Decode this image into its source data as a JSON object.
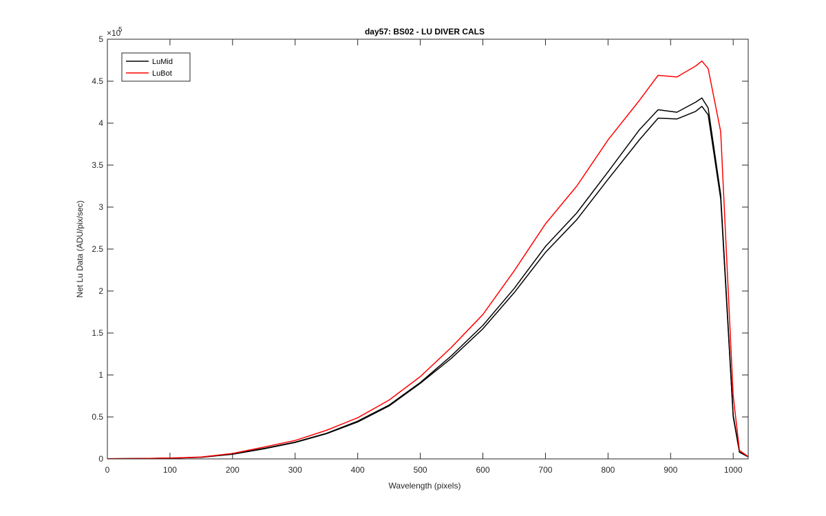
{
  "chart_data": {
    "type": "line",
    "title": "day57: BS02 - LU DIVER CALS",
    "xlabel": "Wavelength (pixels)",
    "ylabel": "Net Lu Data (ADU/pix/sec)",
    "y_exponent_label": "×10",
    "y_exponent": "5",
    "xlim": [
      0,
      1024
    ],
    "ylim": [
      0,
      500000
    ],
    "x_ticks": [
      0,
      100,
      200,
      300,
      400,
      500,
      600,
      700,
      800,
      900,
      1000
    ],
    "y_ticks": [
      0,
      50000,
      100000,
      150000,
      200000,
      250000,
      300000,
      350000,
      400000,
      450000,
      500000
    ],
    "x_tick_labels": [
      "0",
      "100",
      "200",
      "300",
      "400",
      "500",
      "600",
      "700",
      "800",
      "900",
      "1000"
    ],
    "y_tick_labels": [
      "0",
      "0.5",
      "1",
      "1.5",
      "2",
      "2.5",
      "3",
      "3.5",
      "4",
      "4.5",
      "5"
    ],
    "grid": false,
    "legend_position": "top-left",
    "colors": {
      "LuMid": "#000000",
      "LuBot": "#ff0000"
    },
    "x": [
      0,
      50,
      100,
      150,
      200,
      250,
      300,
      350,
      400,
      450,
      500,
      550,
      600,
      650,
      700,
      750,
      800,
      850,
      880,
      910,
      940,
      950,
      960,
      980,
      1000,
      1010,
      1024
    ],
    "series": [
      {
        "name": "LuMid",
        "color": "#000000",
        "values": [
          200,
          400,
          900,
          2000,
          5500,
          12000,
          19500,
          30000,
          44000,
          63000,
          90000,
          120000,
          155000,
          198000,
          246000,
          285000,
          333000,
          380000,
          406000,
          405000,
          414000,
          420000,
          410000,
          310000,
          50000,
          8000,
          2500
        ]
      },
      {
        "name": "LuMid",
        "color": "#000000",
        "values": [
          200,
          400,
          900,
          2000,
          5800,
          12500,
          20000,
          30500,
          45000,
          64000,
          91000,
          123000,
          159000,
          203000,
          253000,
          293000,
          342000,
          392000,
          416000,
          413000,
          425000,
          430000,
          418000,
          315000,
          52000,
          8000,
          2500
        ]
      },
      {
        "name": "LuBot",
        "color": "#ff0000",
        "values": [
          200,
          450,
          1000,
          2200,
          6500,
          14000,
          22000,
          34000,
          49000,
          70000,
          98000,
          133000,
          172000,
          224000,
          280000,
          325000,
          380000,
          427000,
          457000,
          455000,
          468000,
          474000,
          465000,
          390000,
          75000,
          10000,
          2800
        ]
      }
    ]
  }
}
